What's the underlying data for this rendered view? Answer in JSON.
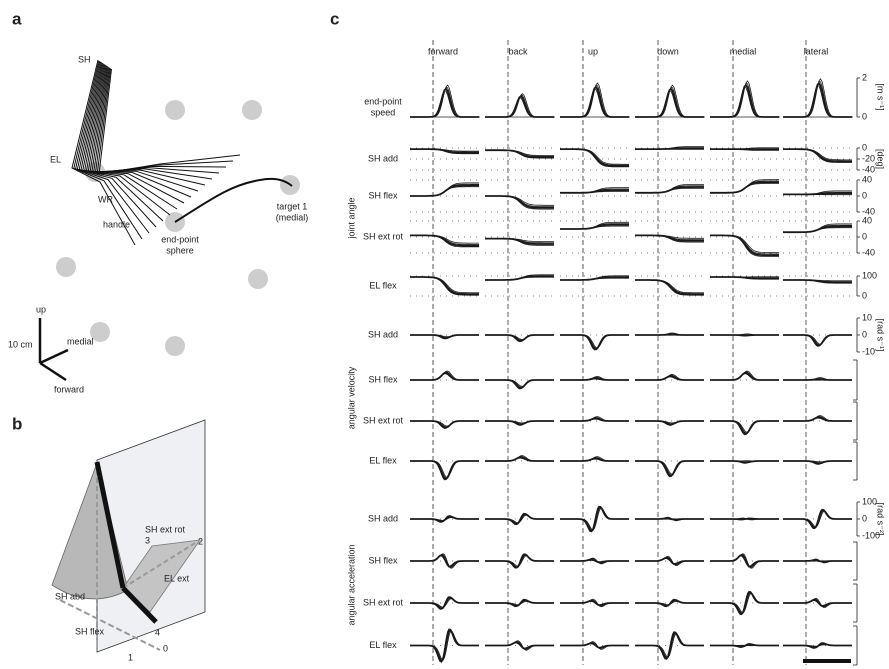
{
  "panel_a": {
    "label": "a",
    "labels": {
      "sh": "SH",
      "el": "EL",
      "wr": "WR",
      "handle": "handle",
      "sphere": [
        "end-point",
        "sphere"
      ],
      "target": [
        "target 1",
        "(medial)"
      ]
    },
    "axes": {
      "scale": "10 cm",
      "up": "up",
      "medial": "medial",
      "forward": "forward"
    }
  },
  "panel_b": {
    "label": "b",
    "labels": {
      "sh_ext_rot": "SH ext rot",
      "sh_abd": "SH abd",
      "el_ext": "EL ext",
      "sh_flex": "SH flex"
    },
    "numbers": {
      "n3": "3",
      "n2": "2",
      "n4": "4",
      "n0": "0",
      "n1": "1"
    }
  },
  "panel_c": {
    "label": "c",
    "directions": [
      "forward",
      "back",
      "up",
      "down",
      "medial",
      "lateral"
    ],
    "speed": {
      "label": [
        "end-point",
        "speed"
      ],
      "unit": "[m s⁻¹]",
      "ticks": [
        2,
        0
      ]
    },
    "groups": [
      {
        "title": "joint angle",
        "unit": "[deg]",
        "rows": [
          {
            "label": "SH add",
            "ticks": [
              0,
              -20,
              -40
            ]
          },
          {
            "label": "SH flex",
            "ticks": [
              40,
              0,
              -40
            ]
          },
          {
            "label": "SH ext rot",
            "ticks": [
              40,
              0,
              -40
            ]
          },
          {
            "label": "EL flex",
            "ticks": [
              100,
              0
            ]
          }
        ]
      },
      {
        "title": "angular velocity",
        "unit": "[rad s⁻¹]",
        "rows": [
          {
            "label": "SH add",
            "ticks": [
              10,
              0,
              -10
            ]
          },
          {
            "label": "SH flex",
            "ticks": []
          },
          {
            "label": "SH ext rot",
            "ticks": []
          },
          {
            "label": "EL flex",
            "ticks": []
          }
        ]
      },
      {
        "title": "angular acceleration",
        "unit": "[rad s⁻²]",
        "rows": [
          {
            "label": "SH add",
            "ticks": [
              100,
              0,
              -100
            ]
          },
          {
            "label": "SH flex",
            "ticks": []
          },
          {
            "label": "SH ext rot",
            "ticks": []
          },
          {
            "label": "EL flex",
            "ticks": []
          }
        ]
      }
    ]
  }
}
